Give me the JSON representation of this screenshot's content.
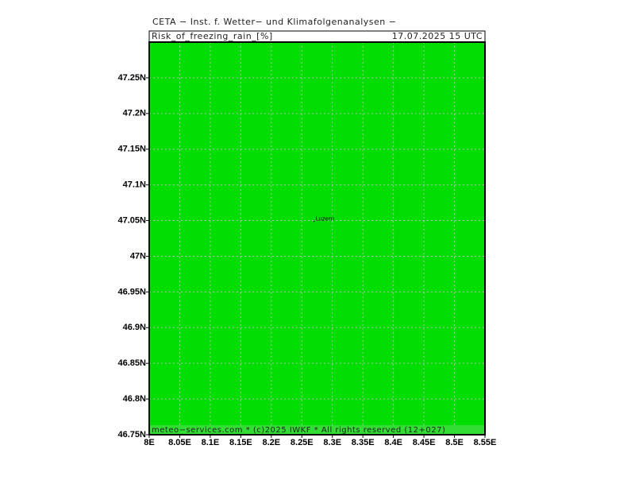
{
  "map": {
    "title": "CETA − Inst. f. Wetter− und Klimafolgenanalysen −",
    "header_left": "Risk_of_freezing_rain_[%]",
    "header_right": "17.07.2025 15 UTC",
    "footer": "meteo−services.com * (c)2025 IWKF * All rights reserved (12+027)",
    "fill_color": "#00dd00",
    "footer_color": "#33dd33",
    "grid": true,
    "xlim": [
      8,
      8.55
    ],
    "ylim": [
      46.75,
      47.3
    ],
    "xticks": [
      {
        "value": 8,
        "label": "8E"
      },
      {
        "value": 8.05,
        "label": "8.05E"
      },
      {
        "value": 8.1,
        "label": "8.1E"
      },
      {
        "value": 8.15,
        "label": "8.15E"
      },
      {
        "value": 8.2,
        "label": "8.2E"
      },
      {
        "value": 8.25,
        "label": "8.25E"
      },
      {
        "value": 8.3,
        "label": "8.3E"
      },
      {
        "value": 8.35,
        "label": "8.35E"
      },
      {
        "value": 8.4,
        "label": "8.4E"
      },
      {
        "value": 8.45,
        "label": "8.45E"
      },
      {
        "value": 8.5,
        "label": "8.5E"
      },
      {
        "value": 8.55,
        "label": "8.55E"
      }
    ],
    "yticks": [
      {
        "value": 46.75,
        "label": "46.75N"
      },
      {
        "value": 46.8,
        "label": "46.8N"
      },
      {
        "value": 46.85,
        "label": "46.85N"
      },
      {
        "value": 46.9,
        "label": "46.9N"
      },
      {
        "value": 46.95,
        "label": "46.95N"
      },
      {
        "value": 47,
        "label": "47N"
      },
      {
        "value": 47.05,
        "label": "47.05N"
      },
      {
        "value": 47.1,
        "label": "47.1N"
      },
      {
        "value": 47.15,
        "label": "47.15N"
      },
      {
        "value": 47.2,
        "label": "47.2N"
      },
      {
        "value": 47.25,
        "label": "47.25N"
      }
    ],
    "places": [
      {
        "name": "Luzern",
        "lon": 8.27,
        "lat": 47.05
      }
    ]
  }
}
